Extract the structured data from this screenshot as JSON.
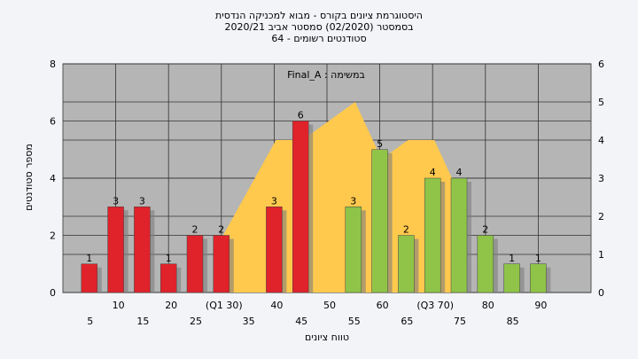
{
  "title_lines": [
    "היסטוגרמת ציונים בקורס - מבוא למכניקה הנדסית",
    "בסמסטר  (02/2020)  סמסטר אביב 2020/21",
    "סטודנטים רשומים - 64"
  ],
  "colors": {
    "red_bar": "#e0222a",
    "green_bar": "#8fc448",
    "area_fill": "#ffc94d",
    "plot_bg": "#b5b5b5",
    "page_bg": "#f2f4f8"
  },
  "chart_data": {
    "type": "bar",
    "title": "היסטוגרמת ציונים בקורס - מבוא למכניקה הנדסית",
    "xlabel": "טווח ציונים",
    "ylabel": "מספר סטודנטים",
    "ylim": [
      0,
      8
    ],
    "y2lim": [
      0,
      6
    ],
    "yticks": [
      0,
      2,
      4,
      6,
      8
    ],
    "y2ticks": [
      0,
      1,
      2,
      3,
      4,
      5,
      6
    ],
    "xlim": [
      0,
      100
    ],
    "grid": true,
    "categories": [
      "5",
      "10",
      "15",
      "20",
      "25",
      "30",
      "40",
      "45",
      "55",
      "60",
      "65",
      "70",
      "75",
      "80",
      "85",
      "90"
    ],
    "values": [
      1,
      3,
      3,
      1,
      2,
      2,
      3,
      6,
      3,
      5,
      2,
      4,
      4,
      2,
      1,
      1
    ],
    "bar_colors": [
      "red",
      "red",
      "red",
      "red",
      "red",
      "red",
      "red",
      "red",
      "green",
      "green",
      "green",
      "green",
      "green",
      "green",
      "green",
      "green"
    ],
    "x_tick_labels_lower": [
      "5",
      "15",
      "25",
      "35",
      "45",
      "55",
      "65",
      "75",
      "85"
    ],
    "x_tick_labels_upper": [
      "10",
      "20",
      "(Q1 30)",
      "40",
      "50",
      "60",
      "(Q3 70)",
      "80",
      "90"
    ],
    "area_series": {
      "x": [
        30,
        40,
        45,
        50,
        55,
        60,
        65,
        70,
        75
      ],
      "y": [
        1.5,
        4,
        4,
        4.5,
        5,
        3.5,
        4,
        4,
        2.5
      ]
    },
    "annotation": "Final_A : במשימה"
  }
}
